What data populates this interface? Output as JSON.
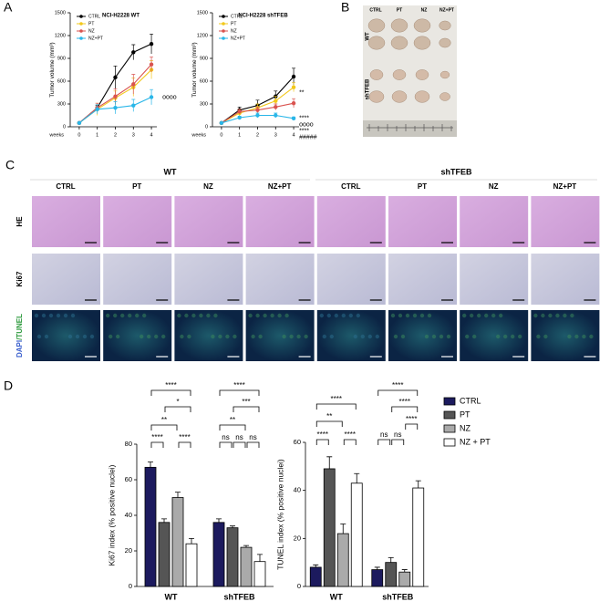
{
  "panel_labels": [
    "A",
    "B",
    "C",
    "D"
  ],
  "panel_b": {
    "columns": [
      "CTRL",
      "PT",
      "NZ",
      "NZ+PT"
    ],
    "rows": [
      "WT",
      "shTFEB"
    ]
  },
  "panel_c": {
    "groups": [
      "WT",
      "shTFEB"
    ],
    "columns": [
      [
        "CTRL",
        "PT",
        "NZ",
        "NZ+PT"
      ],
      [
        "CTRL",
        "PT",
        "NZ",
        "NZ+PT"
      ]
    ],
    "rows": [
      "HE",
      "Ki67"
    ],
    "stain_row": [
      "DAPI",
      "/TUNEL"
    ]
  },
  "chart_data": [
    {
      "type": "line",
      "title": "NCI-H2228 WT",
      "ylabel": "Tumor volume (mm³)",
      "xlabel": "weeks",
      "x": [
        0,
        1,
        2,
        3,
        4
      ],
      "xlim": [
        -0.5,
        4.3
      ],
      "xticks": [
        0,
        1,
        2,
        3,
        4
      ],
      "ylim": [
        0,
        1500
      ],
      "yticks": [
        0,
        300,
        600,
        900,
        1200,
        1500
      ],
      "series": [
        {
          "name": "CTRL",
          "color": "#000000",
          "values": [
            50,
            250,
            650,
            980,
            1090
          ],
          "errors": [
            0,
            30,
            150,
            100,
            130
          ]
        },
        {
          "name": "PT",
          "color": "#f2c81b",
          "values": [
            50,
            230,
            380,
            520,
            750
          ],
          "errors": [
            0,
            80,
            90,
            120,
            120
          ]
        },
        {
          "name": "NZ",
          "color": "#d9534f",
          "values": [
            50,
            250,
            400,
            560,
            820
          ],
          "errors": [
            0,
            60,
            100,
            130,
            100
          ]
        },
        {
          "name": "NZ+PT",
          "color": "#29b6e8",
          "values": [
            50,
            230,
            250,
            280,
            390
          ],
          "errors": [
            0,
            60,
            80,
            80,
            100
          ]
        }
      ],
      "annotations": [
        "oooo"
      ]
    },
    {
      "type": "line",
      "title": "NCI-H2228 shTFEB",
      "ylabel": "Tumor volume (mm³)",
      "xlabel": "weeks",
      "x": [
        0,
        1,
        2,
        3,
        4
      ],
      "xlim": [
        -0.5,
        4.3
      ],
      "xticks": [
        0,
        1,
        2,
        3,
        4
      ],
      "ylim": [
        0,
        1500
      ],
      "yticks": [
        0,
        300,
        600,
        900,
        1200,
        1500
      ],
      "series": [
        {
          "name": "CTRL",
          "color": "#000000",
          "values": [
            50,
            220,
            280,
            400,
            660
          ],
          "errors": [
            0,
            40,
            70,
            70,
            110
          ]
        },
        {
          "name": "PT",
          "color": "#f2c81b",
          "values": [
            50,
            180,
            250,
            340,
            520
          ],
          "errors": [
            0,
            50,
            50,
            60,
            60
          ]
        },
        {
          "name": "NZ",
          "color": "#d9534f",
          "values": [
            50,
            200,
            220,
            260,
            310
          ],
          "errors": [
            0,
            30,
            40,
            40,
            60
          ]
        },
        {
          "name": "NZ+PT",
          "color": "#29b6e8",
          "values": [
            50,
            120,
            150,
            150,
            110
          ],
          "errors": [
            0,
            20,
            30,
            30,
            20
          ]
        }
      ],
      "annotations": [
        "**",
        "****",
        "oooo",
        "****",
        "#####"
      ]
    },
    {
      "type": "bar",
      "ylabel": "Ki67 index (% positive nuclei)",
      "categories": [
        "WT",
        "shTFEB"
      ],
      "ylim": [
        0,
        80
      ],
      "yticks": [
        0,
        20,
        40,
        60,
        80
      ],
      "series": [
        {
          "color": "#1c1a5e",
          "values": [
            67,
            36
          ],
          "errors": [
            3,
            2
          ]
        },
        {
          "color": "#555555",
          "values": [
            36,
            33
          ],
          "errors": [
            2,
            1
          ]
        },
        {
          "color": "#aaaaaa",
          "values": [
            50,
            22
          ],
          "errors": [
            3,
            1
          ]
        },
        {
          "color": "#ffffff",
          "values": [
            24,
            14
          ],
          "errors": [
            3,
            4
          ]
        }
      ],
      "brackets": [
        [
          "****",
          "*",
          "**",
          "****",
          "****"
        ],
        [
          "****",
          "***",
          "**",
          "ns",
          "ns",
          "ns"
        ]
      ]
    },
    {
      "type": "bar",
      "ylabel": "TUNEL index (% positive nuclei)",
      "categories": [
        "WT",
        "shTFEB"
      ],
      "ylim": [
        0,
        60
      ],
      "yticks": [
        0,
        20,
        40,
        60
      ],
      "series": [
        {
          "name": "CTRL",
          "color": "#1c1a5e",
          "values": [
            8,
            7
          ],
          "errors": [
            1,
            1
          ]
        },
        {
          "name": "PT",
          "color": "#555555",
          "values": [
            49,
            10
          ],
          "errors": [
            5,
            2
          ]
        },
        {
          "name": "NZ",
          "color": "#aaaaaa",
          "values": [
            22,
            6
          ],
          "errors": [
            4,
            1
          ]
        },
        {
          "name": "NZ + PT",
          "color": "#ffffff",
          "values": [
            43,
            41
          ],
          "errors": [
            4,
            3
          ]
        }
      ],
      "brackets": [
        [
          "****",
          "**",
          "****",
          "****"
        ],
        [
          "****",
          "****",
          "****",
          "ns",
          "ns"
        ]
      ]
    }
  ]
}
